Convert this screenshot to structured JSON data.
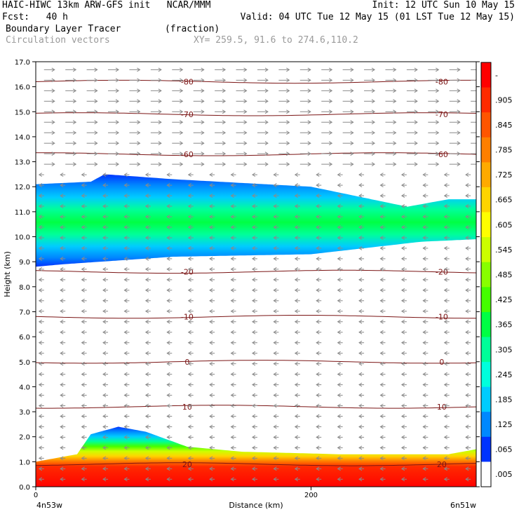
{
  "header": {
    "line1_left": "HAIC-HIWC 13km ARW-GFS init   NCAR/MMM",
    "line1_right": "Init: 12 UTC Sun 10 May 15",
    "line2_left": "Fcst:   40 h",
    "line2_right": "Valid: 04 UTC Tue 12 May 15 (01 LST Tue 12 May 15)",
    "line3_left": "Boundary Layer Tracer        (fraction)",
    "line4_left": "Circulation vectors",
    "line4_right": "XY= 259.5, 91.6 to 274.6,110.2"
  },
  "chart_data": {
    "type": "heatmap",
    "title": "Boundary Layer Tracer",
    "units": "fraction",
    "xlabel": "Distance (km)",
    "ylabel": "Height (km)",
    "ylim": [
      0,
      17
    ],
    "xlim": [
      0,
      320
    ],
    "y_ticks": [
      "0.0",
      "1.0",
      "2.0",
      "3.0",
      "4.0",
      "5.0",
      "6.0",
      "7.0",
      "8.0",
      "9.0",
      "10.0",
      "11.0",
      "12.0",
      "13.0",
      "14.0",
      "15.0",
      "16.0",
      "17.0"
    ],
    "x_ticks": [
      {
        "x": 0,
        "label": "0"
      },
      {
        "x": 200,
        "label": "200"
      }
    ],
    "x_endpoints": {
      "left": "4n53w",
      "right": "6n51w"
    },
    "colorbar": {
      "labels": [
        "-",
        ".905",
        ".845",
        ".785",
        ".725",
        ".665",
        ".605",
        ".545",
        ".485",
        ".425",
        ".365",
        ".305",
        ".245",
        ".185",
        ".125",
        ".065",
        ".005"
      ],
      "colors": [
        "#ff0000",
        "#ff2a00",
        "#ff5500",
        "#ff7f00",
        "#ffaa00",
        "#ffd400",
        "#ffff00",
        "#ccff00",
        "#88ff00",
        "#44ff00",
        "#00ff44",
        "#00ff99",
        "#00ffdd",
        "#00ccff",
        "#0088ff",
        "#0033ff",
        "#ffffff"
      ]
    },
    "tracer_layers": [
      {
        "name": "upper_layer",
        "value_at_core": 0.5,
        "bottom_km": [
          [
            0,
            8.8
          ],
          [
            20,
            8.9
          ],
          [
            100,
            9.2
          ],
          [
            200,
            9.3
          ],
          [
            280,
            9.8
          ],
          [
            320,
            9.9
          ]
        ],
        "top_km": [
          [
            0,
            12.1
          ],
          [
            40,
            12.2
          ],
          [
            50,
            12.5
          ],
          [
            100,
            12.3
          ],
          [
            200,
            12.0
          ],
          [
            270,
            11.2
          ],
          [
            300,
            11.5
          ],
          [
            320,
            11.5
          ]
        ]
      },
      {
        "name": "boundary_layer",
        "value_at_core": 0.95,
        "top_km": [
          [
            0,
            1.0
          ],
          [
            30,
            1.3
          ],
          [
            40,
            2.1
          ],
          [
            60,
            2.4
          ],
          [
            80,
            2.2
          ],
          [
            110,
            1.6
          ],
          [
            150,
            1.4
          ],
          [
            220,
            1.3
          ],
          [
            300,
            1.3
          ],
          [
            320,
            1.5
          ]
        ]
      }
    ],
    "temperature_contours": [
      {
        "label": "-80",
        "height_km": 16.2
      },
      {
        "label": "-70",
        "height_km": 14.9
      },
      {
        "label": "-60",
        "height_km": 13.3
      },
      {
        "label": "-20",
        "height_km": 8.6
      },
      {
        "label": "-10",
        "height_km": 6.8
      },
      {
        "label": "0",
        "height_km": 5.0
      },
      {
        "label": "10",
        "height_km": 3.2
      },
      {
        "label": "20",
        "height_km": 0.9
      }
    ],
    "vectors": {
      "upper_direction": "east",
      "lower_direction": "west",
      "transition_km": 12.5
    }
  }
}
